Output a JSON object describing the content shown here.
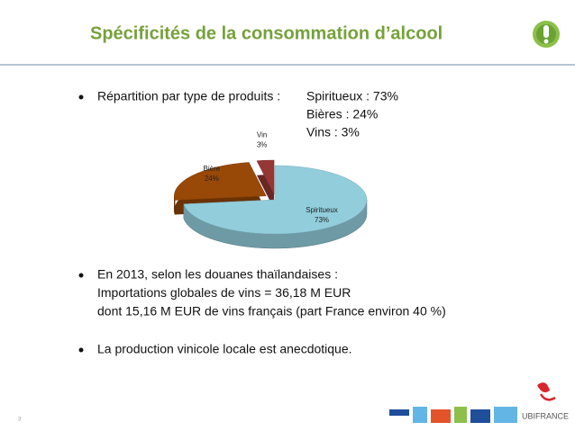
{
  "title": "Spécificités de la consommation d’alcool",
  "bullets": [
    {
      "lines": [
        "Répartition par type de produits :"
      ],
      "details": [
        "Spiritueux : 73%",
        "Bières : 24%",
        "Vins : 3%"
      ]
    },
    {
      "lines": [
        "En 2013, selon les douanes thaïlandaises :",
        "Importations globales de vins = 36,18 M EUR",
        "dont 15,16 M EUR de vins français  (part France environ 40 %)"
      ]
    },
    {
      "lines": [
        "La production vinicole locale est anecdotique."
      ]
    }
  ],
  "chart_data": {
    "type": "pie",
    "categories": [
      "Spiritueux",
      "Bière",
      "Vin"
    ],
    "values": [
      73,
      24,
      3
    ],
    "value_labels": [
      "73%",
      "24%",
      "3%"
    ],
    "colors": [
      "#92cddc",
      "#984807",
      "#953735"
    ]
  },
  "page_number": "3",
  "logo_text": "UBIFRANCE"
}
